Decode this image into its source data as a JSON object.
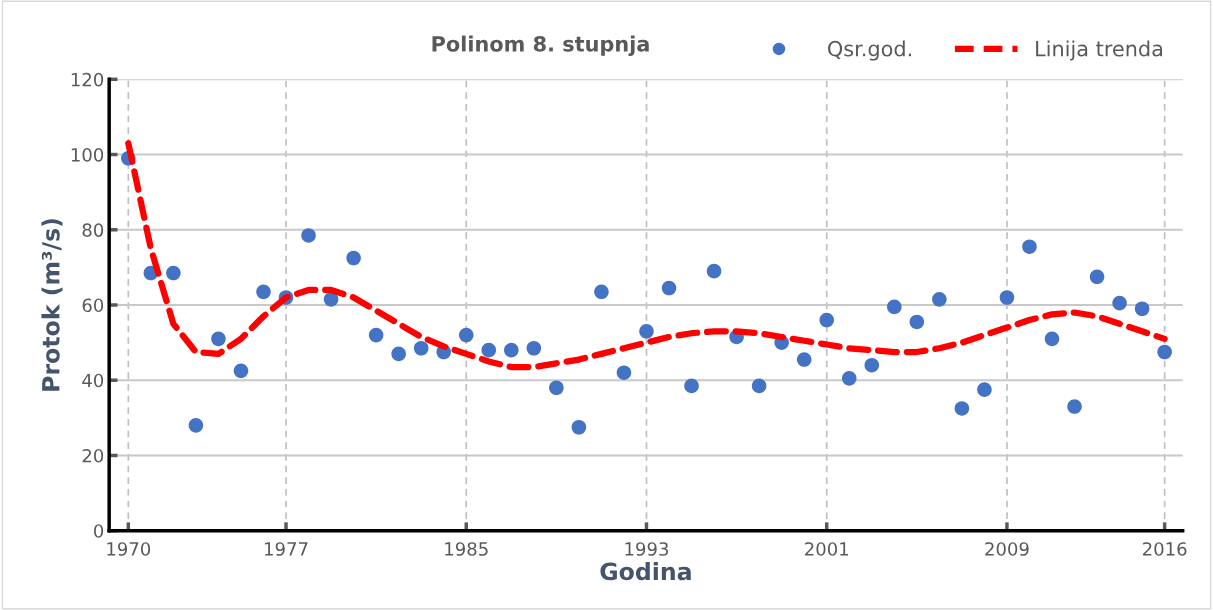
{
  "chart_data": {
    "type": "scatter",
    "title": "Polinom 8. stupnja",
    "xlabel": "Godina",
    "ylabel": "Protok (m³/s)",
    "x": [
      1970,
      1971,
      1972,
      1973,
      1974,
      1975,
      1976,
      1977,
      1978,
      1979,
      1980,
      1981,
      1982,
      1983,
      1984,
      1985,
      1986,
      1987,
      1988,
      1989,
      1990,
      1991,
      1992,
      1993,
      1994,
      1995,
      1996,
      1997,
      1998,
      1999,
      2000,
      2001,
      2002,
      2003,
      2004,
      2005,
      2006,
      2007,
      2008,
      2009,
      2010,
      2011,
      2012,
      2013,
      2014,
      2015,
      2016
    ],
    "series": [
      {
        "name": "Qsr.god.",
        "color": "#4472c4",
        "marker": "circle",
        "values": [
          99,
          68.5,
          68.5,
          28,
          51,
          42.5,
          63.5,
          62,
          78.5,
          61.5,
          72.5,
          52,
          47,
          48.5,
          47.5,
          52,
          48,
          48,
          48.5,
          38,
          27.5,
          63.5,
          42,
          53,
          64.5,
          38.5,
          69,
          51.5,
          38.5,
          50,
          45.5,
          56,
          40.5,
          44,
          59.5,
          55.5,
          61.5,
          32.5,
          37.5,
          62,
          75.5,
          51,
          33,
          67.5,
          60.5,
          59,
          47.5
        ]
      },
      {
        "name": "Linija trenda",
        "type": "line",
        "color": "#ff0000",
        "line_style": "dashed",
        "values": [
          103,
          75,
          55,
          47.5,
          47,
          51,
          57,
          62,
          64,
          64,
          62,
          58.5,
          55,
          51.5,
          49,
          47,
          45,
          43.5,
          43.5,
          44.5,
          45.5,
          47,
          48.5,
          50,
          51.5,
          52.5,
          53,
          53,
          52.5,
          51.5,
          50.5,
          49.5,
          48.5,
          48,
          47.5,
          47.5,
          48.5,
          50,
          52,
          54,
          56,
          57.5,
          58,
          57,
          55,
          53,
          51
        ]
      }
    ],
    "xlim": [
      1969.15,
      2016.8
    ],
    "xticks": [
      1970,
      1977,
      1985,
      1993,
      2001,
      2009,
      2016
    ],
    "ylim": [
      0,
      120
    ],
    "yticks": [
      0,
      20,
      40,
      60,
      80,
      100,
      120
    ],
    "grid": true,
    "legend": "top right"
  }
}
